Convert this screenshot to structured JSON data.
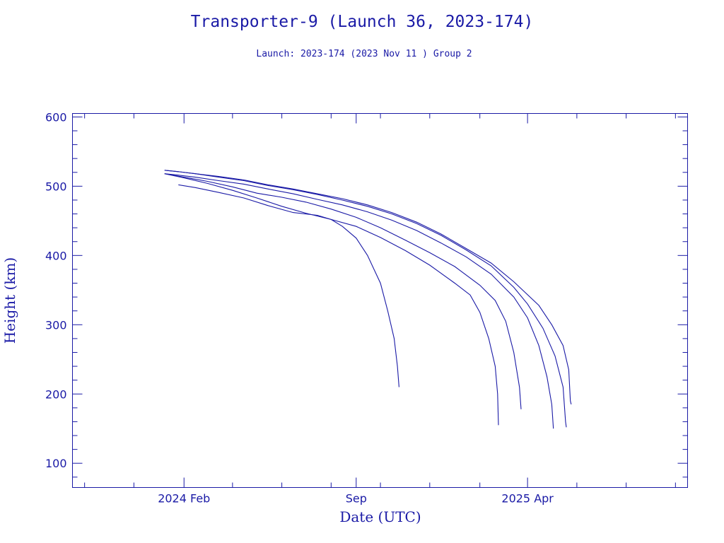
{
  "chart_data": {
    "type": "line",
    "title": "Transporter-9 (Launch 36, 2023-174)",
    "subtitle": "Launch: 2023-174  (2023 Nov 11 )  Group 2",
    "xlabel": "Date (UTC)",
    "ylabel": "Height (km)",
    "ylim": [
      65,
      605
    ],
    "xlim": [
      "2023-09-16",
      "2025-10-16"
    ],
    "grid": false,
    "x_ticks": [
      {
        "label": "2024 Feb",
        "date": "2024-02-01"
      },
      {
        "label": "Sep",
        "date": "2024-09-01"
      },
      {
        "label": "2025 Apr",
        "date": "2025-04-01"
      }
    ],
    "y_ticks": [
      100,
      200,
      300,
      400,
      500,
      600
    ],
    "series": [
      {
        "points": [
          [
            "2024-01-08",
            523
          ],
          [
            "2024-01-25",
            521
          ],
          [
            "2024-02-15",
            518
          ],
          [
            "2024-03-15",
            514
          ],
          [
            "2024-04-15",
            509
          ],
          [
            "2024-05-15",
            502
          ],
          [
            "2024-06-15",
            496
          ],
          [
            "2024-07-15",
            489
          ],
          [
            "2024-08-15",
            482
          ],
          [
            "2024-09-15",
            473
          ],
          [
            "2024-10-15",
            462
          ],
          [
            "2024-11-15",
            448
          ],
          [
            "2024-12-15",
            431
          ],
          [
            "2025-01-15",
            410
          ],
          [
            "2025-02-15",
            389
          ],
          [
            "2025-03-15",
            362
          ],
          [
            "2025-04-15",
            328
          ],
          [
            "2025-05-01",
            300
          ],
          [
            "2025-05-15",
            270
          ],
          [
            "2025-05-22",
            235
          ],
          [
            "2025-05-24",
            190
          ],
          [
            "2025-05-25",
            185
          ]
        ]
      },
      {
        "points": [
          [
            "2024-01-08",
            523
          ],
          [
            "2024-01-25",
            521
          ],
          [
            "2024-02-15",
            518
          ],
          [
            "2024-03-15",
            513
          ],
          [
            "2024-04-15",
            508
          ],
          [
            "2024-05-15",
            501
          ],
          [
            "2024-06-15",
            495
          ],
          [
            "2024-07-15",
            488
          ],
          [
            "2024-08-15",
            480
          ],
          [
            "2024-09-15",
            471
          ],
          [
            "2024-10-15",
            460
          ],
          [
            "2024-11-15",
            446
          ],
          [
            "2024-12-15",
            429
          ],
          [
            "2025-01-15",
            408
          ],
          [
            "2025-02-15",
            385
          ],
          [
            "2025-03-15",
            354
          ],
          [
            "2025-04-01",
            330
          ],
          [
            "2025-04-20",
            295
          ],
          [
            "2025-05-05",
            255
          ],
          [
            "2025-05-15",
            210
          ],
          [
            "2025-05-18",
            160
          ],
          [
            "2025-05-19",
            152
          ]
        ]
      },
      {
        "points": [
          [
            "2024-01-08",
            518
          ],
          [
            "2024-01-25",
            516
          ],
          [
            "2024-02-15",
            513
          ],
          [
            "2024-03-15",
            508
          ],
          [
            "2024-04-15",
            503
          ],
          [
            "2024-05-15",
            496
          ],
          [
            "2024-06-15",
            489
          ],
          [
            "2024-07-15",
            481
          ],
          [
            "2024-08-15",
            473
          ],
          [
            "2024-09-15",
            463
          ],
          [
            "2024-10-15",
            451
          ],
          [
            "2024-11-15",
            436
          ],
          [
            "2024-12-15",
            418
          ],
          [
            "2025-01-15",
            398
          ],
          [
            "2025-02-15",
            373
          ],
          [
            "2025-03-15",
            340
          ],
          [
            "2025-04-01",
            310
          ],
          [
            "2025-04-15",
            270
          ],
          [
            "2025-04-25",
            225
          ],
          [
            "2025-05-01",
            185
          ],
          [
            "2025-05-03",
            150
          ]
        ]
      },
      {
        "points": [
          [
            "2024-01-08",
            518
          ],
          [
            "2024-02-01",
            513
          ],
          [
            "2024-03-01",
            507
          ],
          [
            "2024-04-01",
            499
          ],
          [
            "2024-05-01",
            490
          ],
          [
            "2024-06-01",
            484
          ],
          [
            "2024-07-01",
            477
          ],
          [
            "2024-08-01",
            467
          ],
          [
            "2024-09-01",
            455
          ],
          [
            "2024-10-01",
            440
          ],
          [
            "2024-11-01",
            422
          ],
          [
            "2024-12-01",
            404
          ],
          [
            "2025-01-01",
            384
          ],
          [
            "2025-02-01",
            357
          ],
          [
            "2025-02-20",
            335
          ],
          [
            "2025-03-05",
            305
          ],
          [
            "2025-03-15",
            260
          ],
          [
            "2025-03-22",
            210
          ],
          [
            "2025-03-24",
            178
          ]
        ]
      },
      {
        "points": [
          [
            "2024-01-08",
            518
          ],
          [
            "2024-02-01",
            512
          ],
          [
            "2024-03-01",
            504
          ],
          [
            "2024-04-01",
            494
          ],
          [
            "2024-05-01",
            483
          ],
          [
            "2024-06-01",
            471
          ],
          [
            "2024-07-01",
            461
          ],
          [
            "2024-08-01",
            452
          ],
          [
            "2024-09-01",
            442
          ],
          [
            "2024-10-01",
            426
          ],
          [
            "2024-11-01",
            407
          ],
          [
            "2024-12-01",
            386
          ],
          [
            "2025-01-01",
            360
          ],
          [
            "2025-01-20",
            343
          ],
          [
            "2025-02-01",
            318
          ],
          [
            "2025-02-12",
            280
          ],
          [
            "2025-02-20",
            240
          ],
          [
            "2025-02-23",
            200
          ],
          [
            "2025-02-24",
            155
          ]
        ]
      },
      {
        "points": [
          [
            "2024-01-25",
            502
          ],
          [
            "2024-02-15",
            498
          ],
          [
            "2024-03-15",
            491
          ],
          [
            "2024-04-15",
            483
          ],
          [
            "2024-05-15",
            472
          ],
          [
            "2024-06-15",
            462
          ],
          [
            "2024-07-15",
            458
          ],
          [
            "2024-08-01",
            452
          ],
          [
            "2024-08-15",
            442
          ],
          [
            "2024-09-01",
            425
          ],
          [
            "2024-09-15",
            400
          ],
          [
            "2024-10-01",
            360
          ],
          [
            "2024-10-10",
            320
          ],
          [
            "2024-10-18",
            280
          ],
          [
            "2024-10-22",
            240
          ],
          [
            "2024-10-24",
            210
          ]
        ]
      }
    ]
  }
}
